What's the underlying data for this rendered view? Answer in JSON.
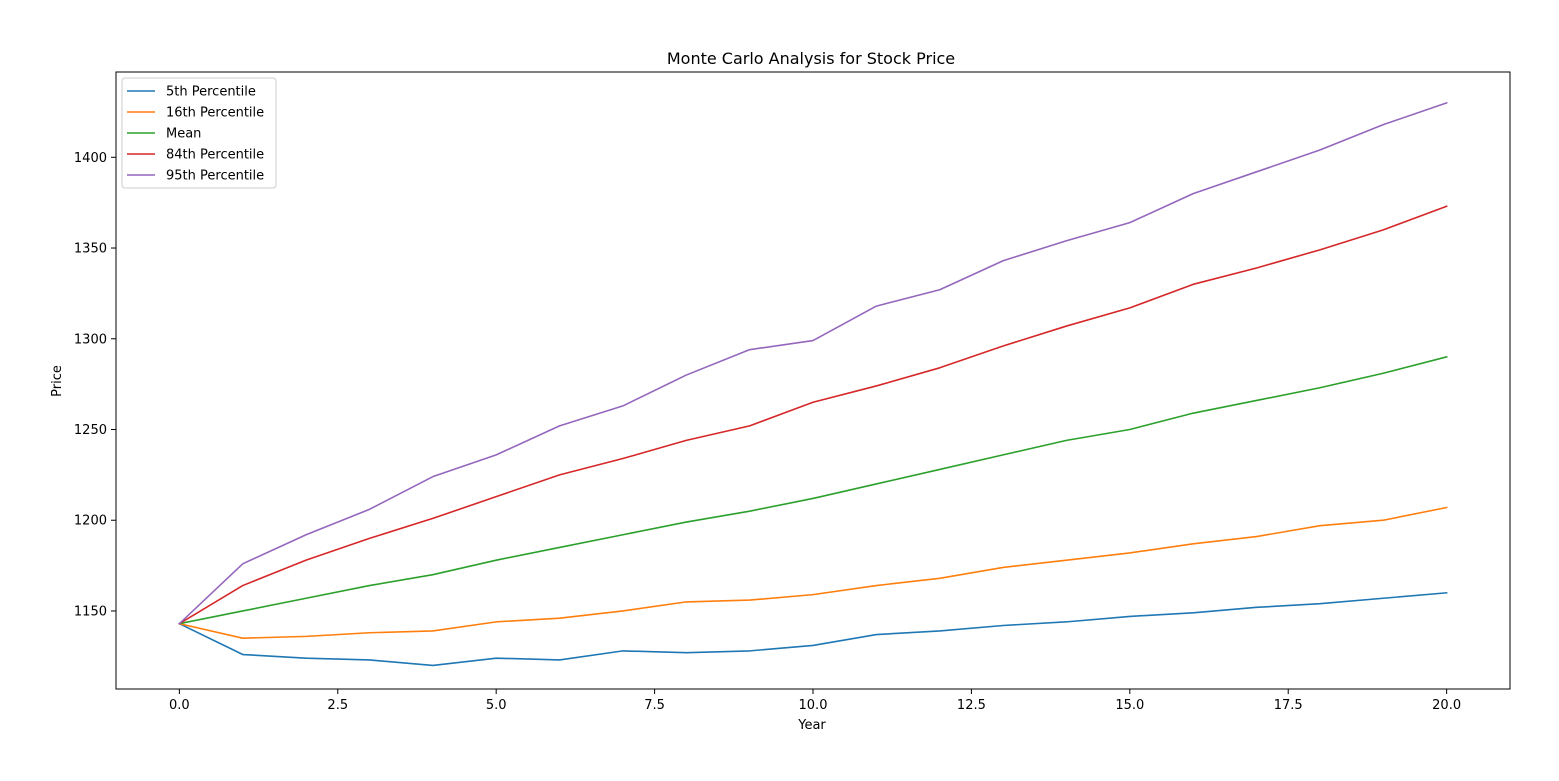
{
  "chart_data": {
    "type": "line",
    "title": "Monte Carlo Analysis for Stock Price",
    "xlabel": "Year",
    "ylabel": "Price",
    "xlim": [
      -1.0,
      21.0
    ],
    "ylim": [
      1107,
      1447
    ],
    "grid": false,
    "legend_position": "top-left",
    "x": [
      0,
      1,
      2,
      3,
      4,
      5,
      6,
      7,
      8,
      9,
      10,
      11,
      12,
      13,
      14,
      15,
      16,
      17,
      18,
      19,
      20
    ],
    "xticks": [
      0.0,
      2.5,
      5.0,
      7.5,
      10.0,
      12.5,
      15.0,
      17.5,
      20.0
    ],
    "xtick_labels": [
      "0.0",
      "2.5",
      "5.0",
      "7.5",
      "10.0",
      "12.5",
      "15.0",
      "17.5",
      "20.0"
    ],
    "yticks": [
      1150,
      1200,
      1250,
      1300,
      1350,
      1400
    ],
    "ytick_labels": [
      "1150",
      "1200",
      "1250",
      "1300",
      "1350",
      "1400"
    ],
    "series": [
      {
        "name": "5th Percentile",
        "color": "#1f77b4",
        "values": [
          1143,
          1126,
          1124,
          1123,
          1120,
          1124,
          1123,
          1128,
          1127,
          1128,
          1131,
          1137,
          1139,
          1142,
          1144,
          1147,
          1149,
          1152,
          1154,
          1157,
          1160
        ]
      },
      {
        "name": "16th Percentile",
        "color": "#ff7f0e",
        "values": [
          1143,
          1135,
          1136,
          1138,
          1139,
          1144,
          1146,
          1150,
          1155,
          1156,
          1159,
          1164,
          1168,
          1174,
          1178,
          1182,
          1187,
          1191,
          1197,
          1200,
          1207
        ]
      },
      {
        "name": "Mean",
        "color": "#2ca02c",
        "values": [
          1143,
          1150,
          1157,
          1164,
          1170,
          1178,
          1185,
          1192,
          1199,
          1205,
          1212,
          1220,
          1228,
          1236,
          1244,
          1250,
          1259,
          1266,
          1273,
          1281,
          1290
        ]
      },
      {
        "name": "84th Percentile",
        "color": "#d62728",
        "values": [
          1143,
          1164,
          1178,
          1190,
          1201,
          1213,
          1225,
          1234,
          1244,
          1252,
          1265,
          1274,
          1284,
          1296,
          1307,
          1317,
          1330,
          1339,
          1349,
          1360,
          1373
        ]
      },
      {
        "name": "95th Percentile",
        "color": "#9467bd",
        "values": [
          1143,
          1176,
          1192,
          1206,
          1224,
          1236,
          1252,
          1263,
          1280,
          1294,
          1299,
          1318,
          1327,
          1343,
          1354,
          1364,
          1380,
          1392,
          1404,
          1418,
          1430
        ]
      }
    ]
  }
}
